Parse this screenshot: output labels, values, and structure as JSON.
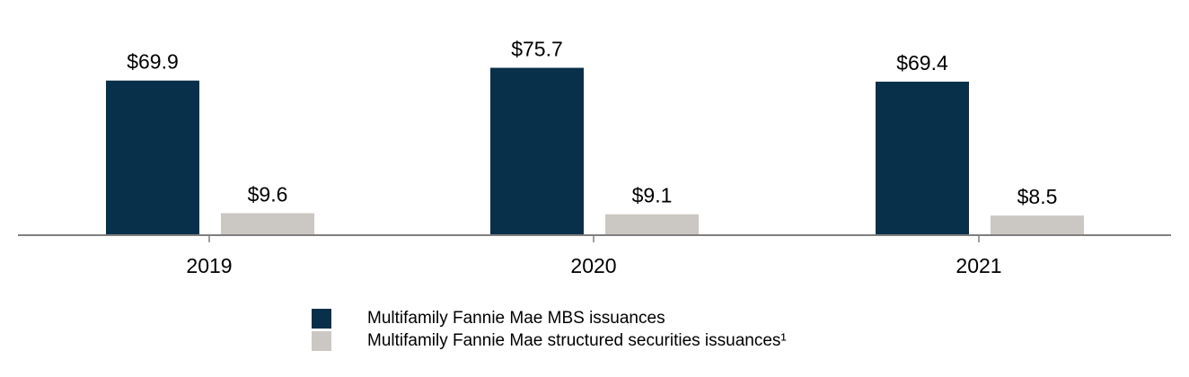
{
  "chart_data": {
    "type": "bar",
    "categories": [
      "2019",
      "2020",
      "2021"
    ],
    "series": [
      {
        "name": "Multifamily Fannie Mae MBS issuances",
        "values": [
          69.9,
          75.7,
          69.4
        ],
        "labels": [
          "$69.9",
          "$75.7",
          "$69.4"
        ],
        "color": "#08304a"
      },
      {
        "name": "Multifamily Fannie Mae structured securities issuances¹",
        "values": [
          9.6,
          9.1,
          8.5
        ],
        "labels": [
          "$9.6",
          "$9.1",
          "$8.5"
        ],
        "color": "#cbc7c3"
      }
    ],
    "title": "",
    "xlabel": "",
    "ylabel": "",
    "ylim": [
      0,
      80
    ],
    "grid": false,
    "legend": "bottom-center"
  },
  "colors": {
    "axis": "#7f7f7f",
    "text": "#000000"
  }
}
